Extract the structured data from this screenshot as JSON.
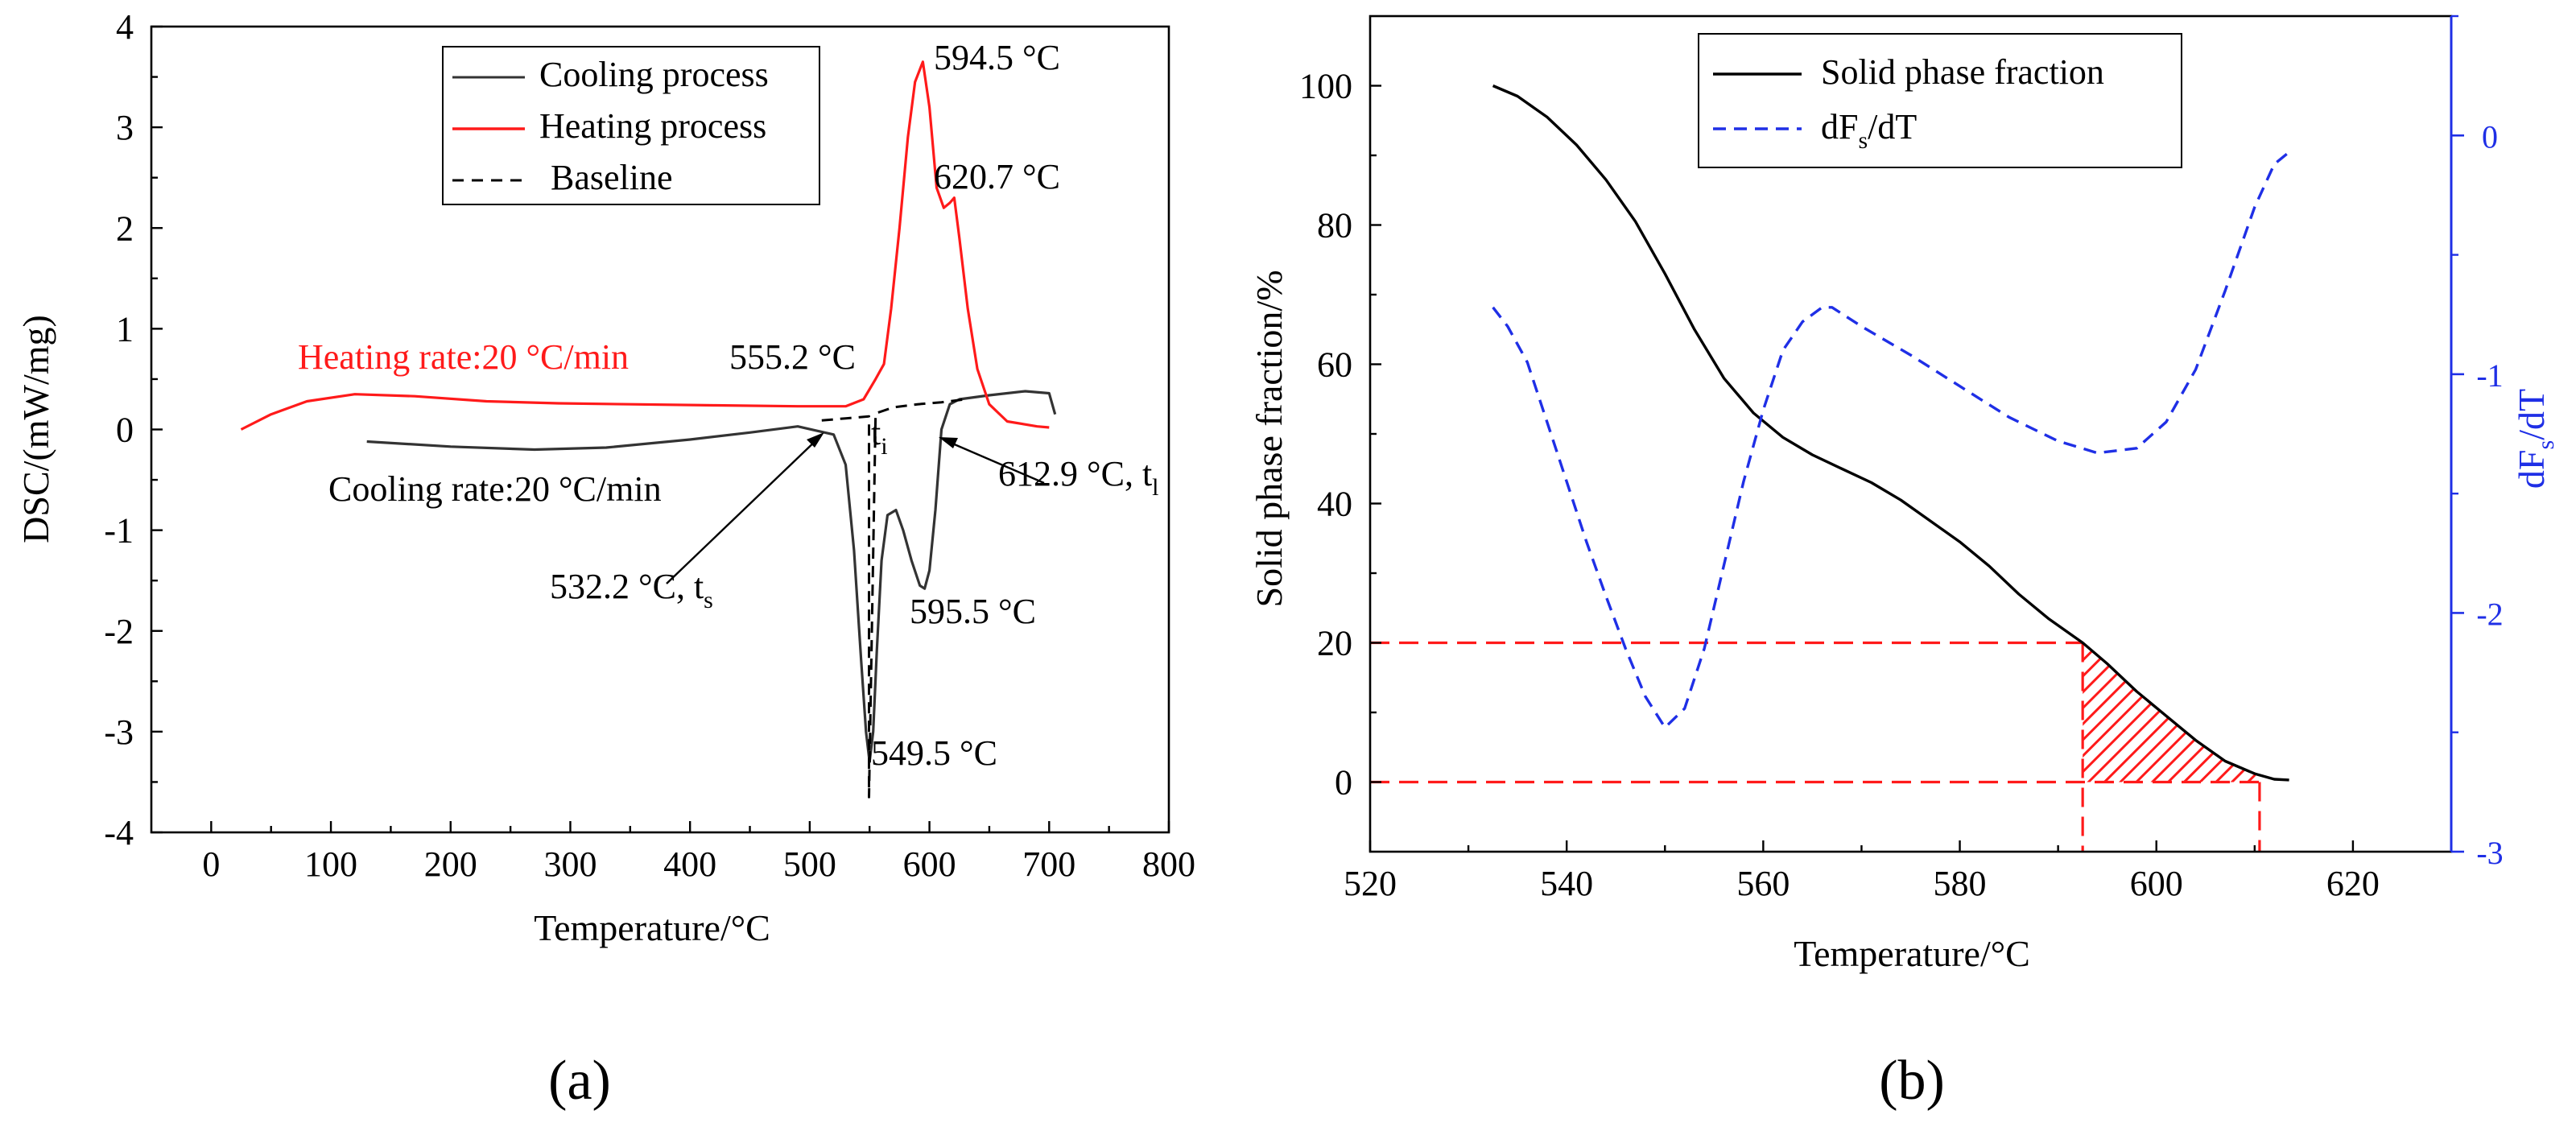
{
  "chart_data": [
    {
      "type": "line",
      "panel_label": "(a)",
      "xlabel": "Temperature/°C",
      "ylabel": "DSC/(mW/mg)",
      "xlim": [
        -50,
        800
      ],
      "ylim": [
        -4,
        4
      ],
      "xticks": [
        "0",
        "100",
        "200",
        "300",
        "400",
        "500",
        "600",
        "700",
        "800"
      ],
      "yticks": [
        "-4",
        "-3",
        "-2",
        "-1",
        "0",
        "1",
        "2",
        "3",
        "4"
      ],
      "legend": {
        "position": "top-right",
        "entries": [
          "Cooling process",
          "Heating process",
          "Baseline"
        ]
      },
      "series": [
        {
          "name": "Cooling process",
          "color": "#333333",
          "style": "solid",
          "x": [
            130,
            200,
            270,
            330,
            400,
            450,
            490,
            520,
            530,
            537,
            543,
            547,
            550,
            553,
            556,
            560,
            565,
            572,
            578,
            585,
            592,
            596,
            600,
            605,
            610,
            617,
            625,
            650,
            680,
            700,
            705
          ],
          "y": [
            -0.12,
            -0.17,
            -0.2,
            -0.18,
            -0.1,
            -0.03,
            0.03,
            -0.05,
            -0.35,
            -1.2,
            -2.3,
            -3.0,
            -3.3,
            -3.0,
            -2.2,
            -1.3,
            -0.85,
            -0.8,
            -1.0,
            -1.3,
            -1.55,
            -1.58,
            -1.4,
            -0.8,
            0.0,
            0.25,
            0.3,
            0.34,
            0.38,
            0.36,
            0.15
          ]
        },
        {
          "name": "Heating process",
          "color": "#ff1a1a",
          "style": "solid",
          "x": [
            25,
            50,
            80,
            120,
            170,
            230,
            290,
            350,
            420,
            490,
            530,
            545,
            555,
            562,
            568,
            575,
            582,
            588,
            594.5,
            600,
            606,
            612,
            617,
            620.7,
            625,
            632,
            640,
            650,
            665,
            690,
            700
          ],
          "y": [
            0.0,
            0.15,
            0.28,
            0.35,
            0.33,
            0.28,
            0.26,
            0.25,
            0.24,
            0.23,
            0.23,
            0.3,
            0.5,
            0.65,
            1.2,
            2.0,
            2.9,
            3.45,
            3.65,
            3.2,
            2.4,
            2.2,
            2.25,
            2.3,
            1.9,
            1.2,
            0.6,
            0.25,
            0.08,
            0.03,
            0.02
          ]
        },
        {
          "name": "Baseline",
          "color": "#000000",
          "style": "dashed",
          "x": [
            510,
            520,
            530,
            540,
            549.5,
            549.5,
            555,
            570,
            590,
            610,
            630
          ],
          "y": [
            0.09,
            0.1,
            0.11,
            0.12,
            0.13,
            -3.65,
            0.16,
            0.22,
            0.25,
            0.27,
            0.3
          ]
        }
      ],
      "annotations": [
        {
          "text": "594.5 °C",
          "color": "#000000"
        },
        {
          "text": "620.7 °C",
          "color": "#000000"
        },
        {
          "text": "Heating rate:20 °C/min",
          "color": "#ff1a1a"
        },
        {
          "text": "555.2 °C",
          "color": "#000000"
        },
        {
          "text": "t",
          "sub": "i"
        },
        {
          "text": "612.9 °C, t",
          "sub": "l"
        },
        {
          "text": "Cooling rate:20 °C/min",
          "color": "#000000"
        },
        {
          "text": "532.2 °C, t",
          "sub": "s"
        },
        {
          "text": "595.5 °C",
          "color": "#000000"
        },
        {
          "text": "549.5 °C",
          "color": "#000000"
        }
      ]
    },
    {
      "type": "line",
      "panel_label": "(b)",
      "xlabel": "Temperature/°C",
      "ylabel": "Solid phase fraction/%",
      "y2label": "dF",
      "y2label_sub": "s",
      "y2label_tail": "/dT",
      "xlim": [
        520,
        630
      ],
      "ylim": [
        -10,
        110
      ],
      "y2lim": [
        -3,
        0.5
      ],
      "xticks": [
        "520",
        "540",
        "560",
        "580",
        "600",
        "620"
      ],
      "yticks": [
        "0",
        "20",
        "40",
        "60",
        "80",
        "100"
      ],
      "y2ticks": [
        "-3",
        "-2",
        "-1",
        "0"
      ],
      "legend": {
        "position": "top-center",
        "entries": [
          {
            "name": "Solid phase fraction"
          },
          {
            "name": "dF",
            "sub": "s",
            "tail": "/dT"
          }
        ]
      },
      "series": [
        {
          "name": "Solid phase fraction",
          "axis": "left",
          "color": "#000000",
          "style": "solid",
          "x": [
            532.5,
            535,
            538,
            541,
            544,
            547,
            550,
            553,
            556,
            559,
            562,
            565,
            568,
            571,
            574,
            577,
            580,
            583,
            586,
            589,
            592.5,
            595,
            598,
            601,
            604,
            607,
            610,
            612,
            613.5
          ],
          "y": [
            100,
            98.5,
            95.5,
            91.5,
            86.5,
            80.5,
            73,
            65,
            58,
            53,
            49.5,
            47,
            45,
            43,
            40.5,
            37.5,
            34.5,
            31,
            27,
            23.5,
            20,
            17,
            13,
            9.5,
            6,
            3,
            1.2,
            0.4,
            0.3
          ]
        },
        {
          "name": "dFs/dT",
          "axis": "right",
          "color": "#1f2fe6",
          "style": "dashed",
          "x": [
            532.5,
            534,
            536,
            538,
            540,
            542,
            544,
            546,
            548,
            550,
            552,
            554,
            556,
            558,
            560,
            562,
            564,
            566,
            567,
            570,
            575,
            580,
            585,
            590,
            594,
            598,
            601,
            604,
            607,
            610,
            612,
            613.5
          ],
          "y": [
            -0.72,
            -0.8,
            -0.95,
            -1.2,
            -1.45,
            -1.7,
            -1.93,
            -2.15,
            -2.35,
            -2.48,
            -2.4,
            -2.15,
            -1.8,
            -1.45,
            -1.15,
            -0.9,
            -0.78,
            -0.72,
            -0.72,
            -0.8,
            -0.92,
            -1.05,
            -1.18,
            -1.28,
            -1.33,
            -1.31,
            -1.2,
            -0.98,
            -0.65,
            -0.3,
            -0.12,
            -0.07
          ]
        }
      ],
      "reference_lines": [
        {
          "kind": "horizontal",
          "y": 20,
          "x_from": 520,
          "x_to": 592.5,
          "color": "#ff1a1a"
        },
        {
          "kind": "horizontal",
          "y": 0,
          "x_from": 520,
          "x_to": 610.5,
          "color": "#ff1a1a"
        },
        {
          "kind": "vertical",
          "x": 592.5,
          "color": "#ff1a1a"
        },
        {
          "kind": "vertical",
          "x": 610.5,
          "color": "#ff1a1a"
        }
      ],
      "shaded_region": {
        "x_from": 592.5,
        "x_to": 610.5,
        "between": [
          "Solid phase fraction",
          0
        ],
        "color": "#ff1a1a",
        "pattern": "hatch"
      }
    }
  ]
}
